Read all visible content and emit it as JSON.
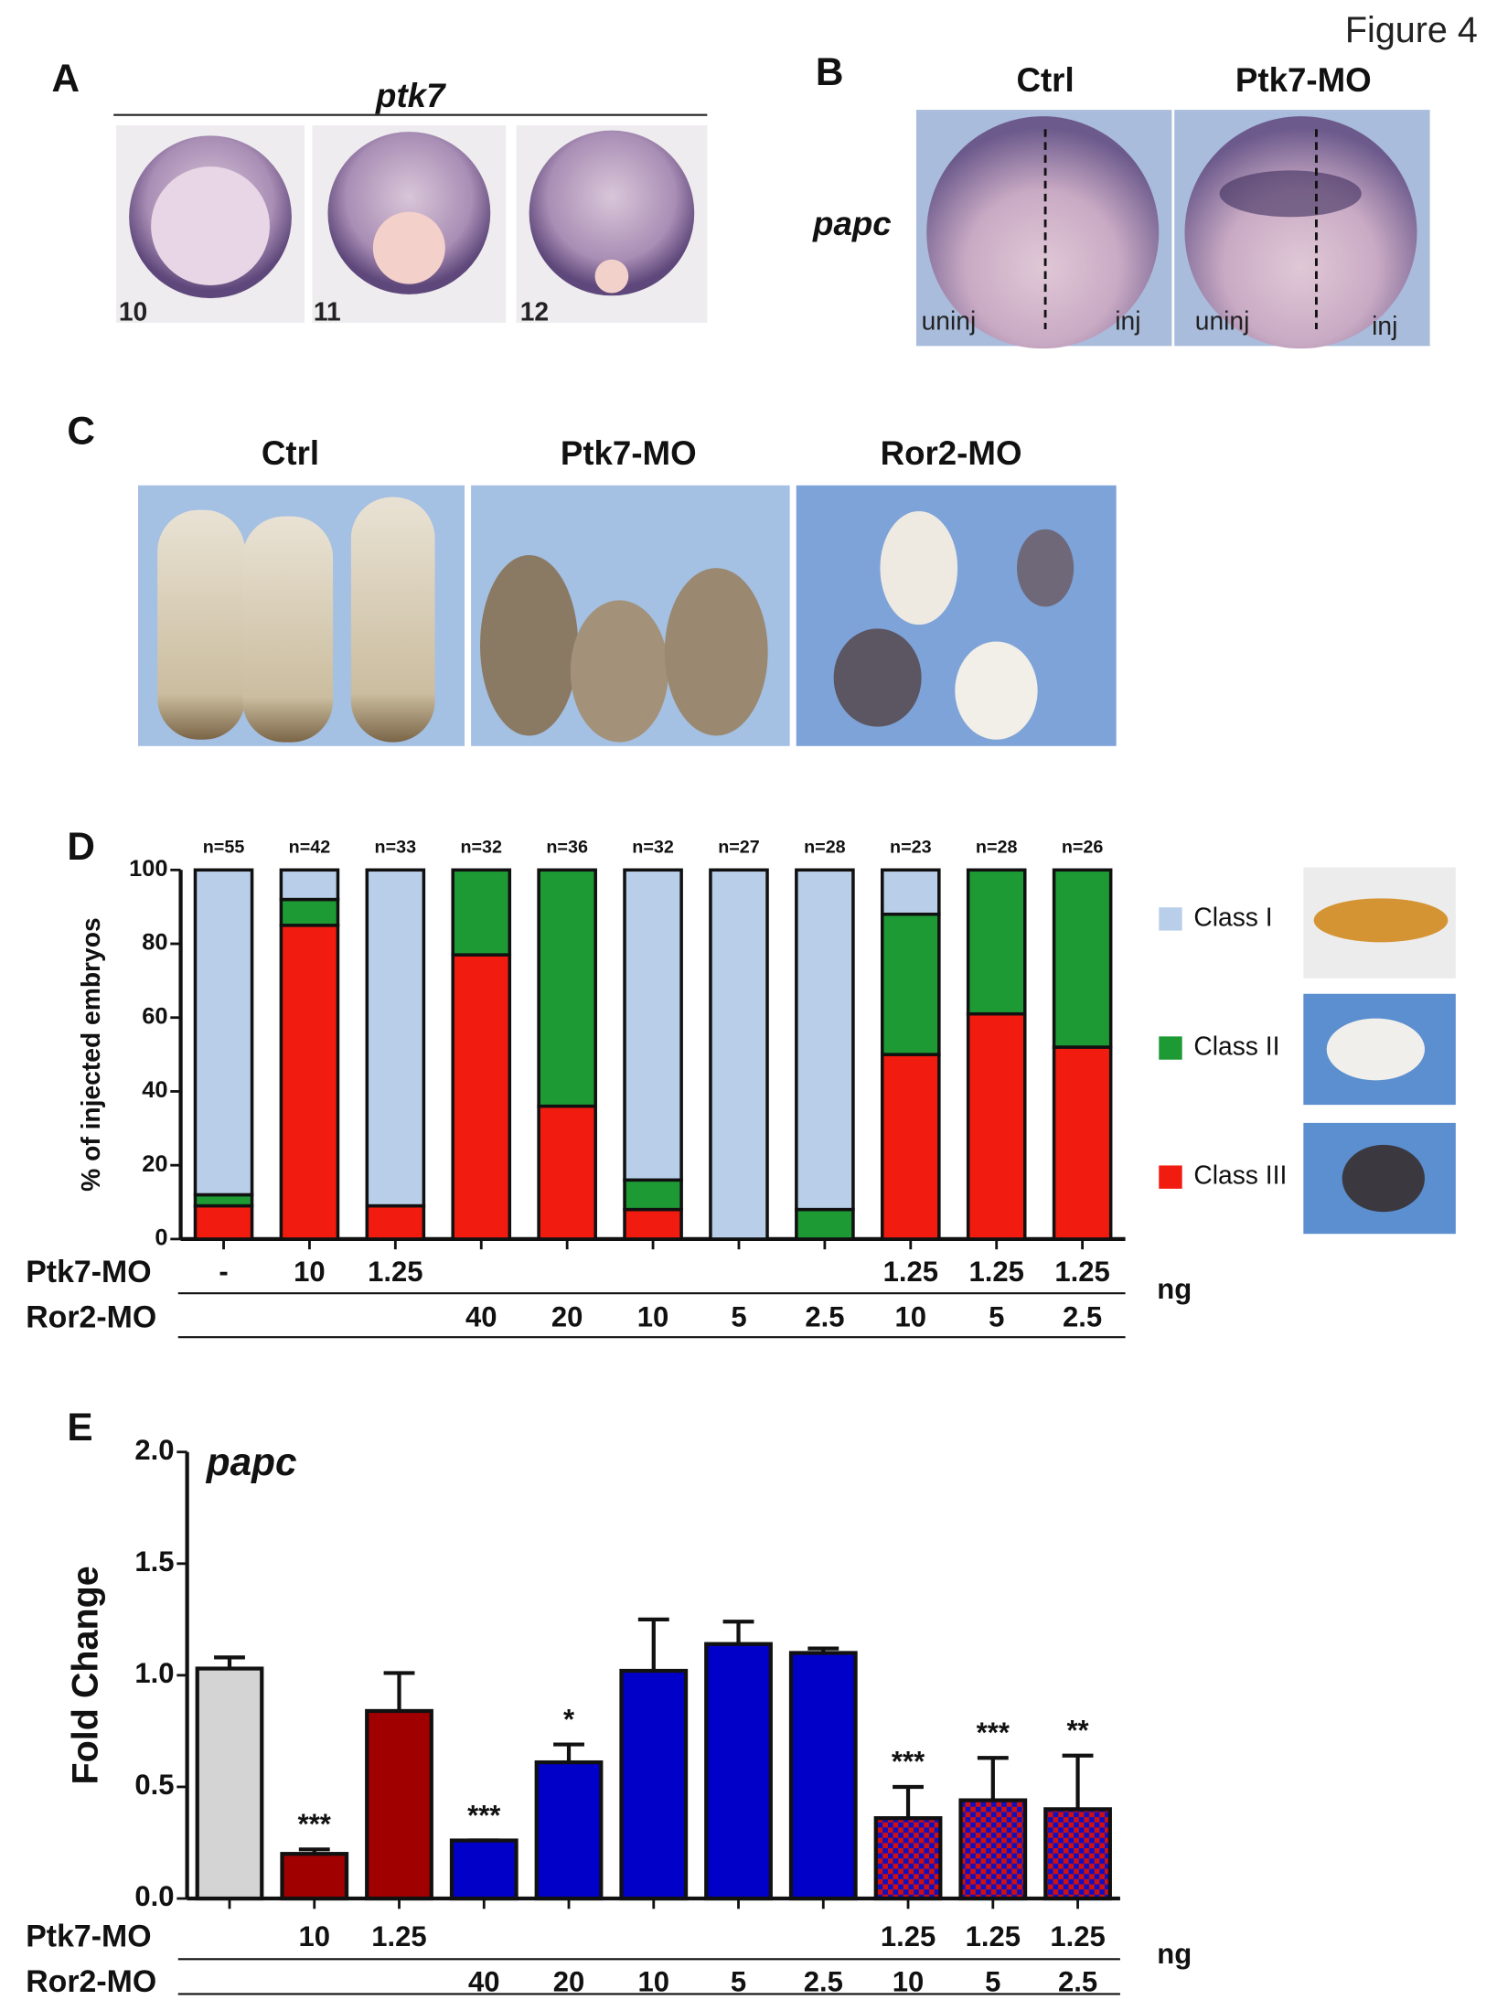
{
  "figure_label": "Figure 4",
  "panel_a": {
    "letter": "A",
    "gene": "ptk7",
    "stages": [
      "10",
      "11",
      "12"
    ]
  },
  "panel_b": {
    "letter": "B",
    "columns": [
      "Ctrl",
      "Ptk7-MO"
    ],
    "gene": "papc",
    "side_labels": [
      "uninj",
      "inj"
    ]
  },
  "panel_c": {
    "letter": "C",
    "columns": [
      "Ctrl",
      "Ptk7-MO",
      "Ror2-MO"
    ]
  },
  "chart_data": [
    {
      "type": "stacked_bar",
      "panel": "D",
      "ylabel": "% of injected embryos",
      "ylim": [
        0,
        100
      ],
      "yticks": [
        0,
        20,
        40,
        60,
        80,
        100
      ],
      "n_labels": [
        "n=55",
        "n=42",
        "n=33",
        "n=32",
        "n=36",
        "n=32",
        "n=27",
        "n=28",
        "n=23",
        "n=28",
        "n=26"
      ],
      "series": [
        {
          "name": "Class I",
          "color": "#b9cfe9",
          "values": [
            88,
            8,
            91,
            0,
            0,
            84,
            100,
            92,
            12,
            0,
            0
          ]
        },
        {
          "name": "Class II",
          "color": "#1e9a35",
          "values": [
            3,
            7,
            0,
            23,
            64,
            8,
            0,
            8,
            38,
            39,
            48
          ]
        },
        {
          "name": "Class III",
          "color": "#f21b0f",
          "values": [
            9,
            85,
            9,
            77,
            36,
            8,
            0,
            0,
            50,
            61,
            52
          ]
        }
      ],
      "row_labels": [
        "Ptk7-MO",
        "Ror2-MO"
      ],
      "dose_rows": [
        [
          "-",
          "10",
          "1.25",
          null,
          null,
          null,
          null,
          null,
          "1.25",
          "1.25",
          "1.25"
        ],
        [
          null,
          null,
          null,
          "40",
          "20",
          "10",
          "5",
          "2.5",
          "10",
          "5",
          "2.5"
        ]
      ],
      "unit": "ng"
    },
    {
      "type": "bar",
      "panel": "E",
      "title": "papc",
      "ylabel": "Fold Change",
      "ylim": [
        0,
        2
      ],
      "yticks": [
        {
          "value": 0,
          "label": "0.0"
        },
        {
          "value": 0.5,
          "label": "0.5"
        },
        {
          "value": 1,
          "label": "1.0"
        },
        {
          "value": 1.5,
          "label": "1.5"
        },
        {
          "value": 2,
          "label": "2.0"
        }
      ],
      "values": [
        1.03,
        0.2,
        0.84,
        0.26,
        0.61,
        1.02,
        1.14,
        1.1,
        0.36,
        0.44,
        0.4
      ],
      "errors": [
        0.05,
        0.02,
        0.17,
        0,
        0.08,
        0.23,
        0.1,
        0.02,
        0.14,
        0.19,
        0.24
      ],
      "colors": [
        "#d4d4d4",
        "#a00000",
        "#a00000",
        "#0000c8",
        "#0000c8",
        "#0000c8",
        "#0000c8",
        "#0000c8",
        "checker",
        "checker",
        "checker"
      ],
      "significance": [
        null,
        "***",
        null,
        "***",
        "*",
        null,
        null,
        null,
        "***",
        "***",
        "**"
      ],
      "row_labels": [
        "Ptk7-MO",
        "Ror2-MO"
      ],
      "dose_rows": [
        [
          null,
          "10",
          "1.25",
          null,
          null,
          null,
          null,
          null,
          "1.25",
          "1.25",
          "1.25"
        ],
        [
          null,
          null,
          null,
          "40",
          "20",
          "10",
          "5",
          "2.5",
          "10",
          "5",
          "2.5"
        ]
      ],
      "unit": "ng"
    }
  ]
}
